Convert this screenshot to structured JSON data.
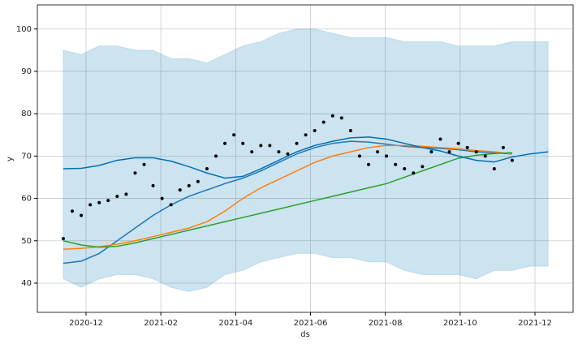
{
  "chart_data": {
    "type": "forecast",
    "xlabel": "ds",
    "ylabel": "y",
    "xlim": [
      2020.8082,
      2022.0017
    ],
    "ylim": [
      33.1,
      105.7
    ],
    "xticks": [
      {
        "value": 2020.9167,
        "label": "2020-12"
      },
      {
        "value": 2021.0833,
        "label": "2021-02"
      },
      {
        "value": 2021.25,
        "label": "2021-04"
      },
      {
        "value": 2021.4167,
        "label": "2021-06"
      },
      {
        "value": 2021.5833,
        "label": "2021-08"
      },
      {
        "value": 2021.75,
        "label": "2021-10"
      },
      {
        "value": 2021.9167,
        "label": "2021-12"
      }
    ],
    "yticks": [
      40,
      50,
      60,
      70,
      80,
      90,
      100
    ],
    "grid": true,
    "band": {
      "color": "#0072b2",
      "x": [
        2020.866,
        2020.906,
        2020.946,
        2020.986,
        2021.026,
        2021.066,
        2021.106,
        2021.146,
        2021.186,
        2021.226,
        2021.266,
        2021.306,
        2021.346,
        2021.386,
        2021.426,
        2021.466,
        2021.506,
        2021.546,
        2021.586,
        2021.626,
        2021.666,
        2021.706,
        2021.746,
        2021.786,
        2021.826,
        2021.866,
        2021.906,
        2021.946
      ],
      "upper": [
        95,
        94,
        96,
        96,
        95,
        95,
        93,
        93,
        92,
        94,
        96,
        97,
        99,
        100,
        100,
        99,
        98,
        98,
        98,
        97,
        97,
        97,
        96,
        96,
        96,
        97,
        97,
        97
      ],
      "lower": [
        41,
        39,
        41,
        42,
        42,
        41,
        39,
        38,
        39,
        42,
        43,
        45,
        46,
        47,
        47,
        46,
        46,
        45,
        45,
        43,
        42,
        42,
        42,
        41,
        43,
        43,
        44,
        44
      ]
    },
    "series": [
      {
        "kind": "line",
        "color": "#1f77b4",
        "x": [
          2020.866,
          2020.906,
          2020.946,
          2020.986,
          2021.026,
          2021.066,
          2021.106,
          2021.146,
          2021.186,
          2021.226,
          2021.266,
          2021.306,
          2021.346,
          2021.386,
          2021.426,
          2021.466,
          2021.506,
          2021.546,
          2021.586,
          2021.626,
          2021.666,
          2021.706,
          2021.746,
          2021.786,
          2021.826,
          2021.866
        ],
        "values": [
          44.7,
          45.2,
          47,
          50,
          53,
          56,
          58.5,
          60.5,
          62,
          63.5,
          64.8,
          66.5,
          68.5,
          70.5,
          72,
          73,
          73.5,
          73.3,
          72.8,
          72.3,
          72,
          71.8,
          71.5,
          71,
          70.8,
          70.5
        ]
      },
      {
        "kind": "line",
        "color": "#ff7f0e",
        "x": [
          2020.866,
          2020.906,
          2020.946,
          2020.986,
          2021.026,
          2021.066,
          2021.106,
          2021.146,
          2021.186,
          2021.226,
          2021.266,
          2021.306,
          2021.346,
          2021.386,
          2021.426,
          2021.466,
          2021.506,
          2021.546,
          2021.586,
          2021.626,
          2021.666,
          2021.706,
          2021.746,
          2021.786,
          2021.826,
          2021.866
        ],
        "values": [
          48,
          48.2,
          48.6,
          49.2,
          50,
          51,
          52,
          53,
          54.5,
          57,
          60,
          62.5,
          64.5,
          66.5,
          68.5,
          70,
          71,
          72,
          72.5,
          72.5,
          72.3,
          72,
          71.7,
          71.3,
          71,
          70.5
        ]
      },
      {
        "kind": "line",
        "color": "#2ca02c",
        "x": [
          2020.866,
          2020.906,
          2020.946,
          2020.986,
          2021.026,
          2021.066,
          2021.106,
          2021.146,
          2021.186,
          2021.226,
          2021.266,
          2021.306,
          2021.346,
          2021.386,
          2021.426,
          2021.466,
          2021.506,
          2021.546,
          2021.586,
          2021.626,
          2021.666,
          2021.706,
          2021.746,
          2021.786,
          2021.826,
          2021.866
        ],
        "values": [
          50,
          49,
          48.5,
          48.7,
          49.5,
          50.5,
          51.5,
          52.5,
          53.5,
          54.5,
          55.5,
          56.5,
          57.5,
          58.5,
          59.5,
          60.5,
          61.5,
          62.5,
          63.5,
          65,
          66.5,
          68,
          69.5,
          70.2,
          70.6,
          70.8
        ]
      },
      {
        "kind": "line",
        "color": "#0072b2",
        "x": [
          2020.866,
          2020.906,
          2020.946,
          2020.986,
          2021.026,
          2021.066,
          2021.106,
          2021.146,
          2021.186,
          2021.226,
          2021.266,
          2021.306,
          2021.346,
          2021.386,
          2021.426,
          2021.466,
          2021.506,
          2021.546,
          2021.586,
          2021.626,
          2021.666,
          2021.706,
          2021.746,
          2021.786,
          2021.826,
          2021.866,
          2021.906,
          2021.946
        ],
        "values": [
          67,
          67.1,
          67.8,
          69,
          69.6,
          69.6,
          68.8,
          67.5,
          66,
          64.8,
          65.2,
          67,
          69,
          71,
          72.5,
          73.5,
          74.3,
          74.5,
          74,
          73,
          72,
          71.2,
          70,
          69,
          68.6,
          69.8,
          70.5,
          71
        ]
      },
      {
        "kind": "scatter",
        "color": "#000000",
        "x": [
          2020.866,
          2020.886,
          2020.906,
          2020.926,
          2020.946,
          2020.966,
          2020.986,
          2021.006,
          2021.026,
          2021.046,
          2021.066,
          2021.086,
          2021.106,
          2021.126,
          2021.146,
          2021.166,
          2021.186,
          2021.206,
          2021.226,
          2021.246,
          2021.266,
          2021.286,
          2021.306,
          2021.326,
          2021.346,
          2021.366,
          2021.386,
          2021.406,
          2021.426,
          2021.446,
          2021.466,
          2021.486,
          2021.506,
          2021.526,
          2021.546,
          2021.566,
          2021.586,
          2021.606,
          2021.626,
          2021.646,
          2021.666,
          2021.686,
          2021.706,
          2021.726,
          2021.746,
          2021.766,
          2021.786,
          2021.806,
          2021.826,
          2021.846,
          2021.866
        ],
        "values": [
          50.5,
          57,
          56,
          58.5,
          59,
          59.5,
          60.5,
          61,
          66,
          68,
          63,
          60,
          58.5,
          62,
          63,
          64,
          67,
          70,
          73,
          75,
          73,
          71,
          72.5,
          72.5,
          71,
          70.5,
          73,
          75,
          76,
          78,
          79.5,
          79,
          76,
          70,
          68,
          71,
          70,
          68,
          67,
          66,
          67.5,
          71,
          74,
          71,
          73,
          72,
          71,
          70,
          67,
          72,
          69
        ]
      }
    ]
  }
}
